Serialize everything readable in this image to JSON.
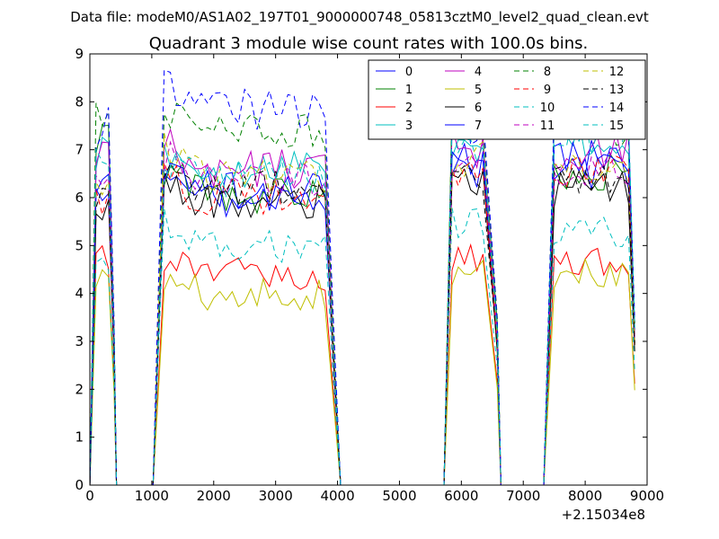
{
  "header": {
    "datafile": "Data file: modeM0/AS1A02_197T01_9000000748_05813cztM0_level2_quad_clean.evt"
  },
  "chart_data": {
    "type": "line",
    "title": "Quadrant 3 module wise count rates with 100.0s bins.",
    "xlabel": "",
    "ylabel": "",
    "x_offset_label": "+2.15034e8",
    "xlim": [
      0,
      9000
    ],
    "ylim": [
      0,
      9
    ],
    "xticks": [
      0,
      1000,
      2000,
      3000,
      4000,
      5000,
      6000,
      7000,
      8000,
      9000
    ],
    "yticks": [
      0,
      1,
      2,
      3,
      4,
      5,
      6,
      7,
      8,
      9
    ],
    "grid": false,
    "legend_position": "top-right",
    "segments": [
      {
        "t0": 100,
        "n": 3,
        "drop": 390
      },
      {
        "t0": 1200,
        "n": 27,
        "drop": 3930
      },
      {
        "t0": 5850,
        "n": 6,
        "drop": 6580
      },
      {
        "t0": 7500,
        "n": 13,
        "drop": 8800
      }
    ],
    "gaps": [
      [
        430,
        1020
      ],
      [
        4050,
        5720
      ],
      [
        6640,
        7330
      ]
    ],
    "series": [
      {
        "name": "0",
        "color": "#0000ff",
        "dash": "solid",
        "level": [
          6.5,
          6.2,
          6.7,
          6.6
        ],
        "bump": 0.45
      },
      {
        "name": "1",
        "color": "#008000",
        "dash": "solid",
        "level": [
          7.2,
          6.1,
          7.5,
          6.6
        ],
        "bump": 0.45
      },
      {
        "name": "2",
        "color": "#ff0000",
        "dash": "solid",
        "level": [
          4.7,
          4.4,
          4.8,
          4.7
        ],
        "bump": 0.35
      },
      {
        "name": "3",
        "color": "#00bfbf",
        "dash": "solid",
        "level": [
          7.0,
          6.6,
          7.1,
          7.2
        ],
        "bump": 0.4
      },
      {
        "name": "4",
        "color": "#bf00bf",
        "dash": "solid",
        "level": [
          6.9,
          6.6,
          7.0,
          7.0
        ],
        "bump": 0.45
      },
      {
        "name": "5",
        "color": "#bfbf00",
        "dash": "solid",
        "level": [
          4.3,
          4.0,
          4.5,
          4.4
        ],
        "bump": 0.35
      },
      {
        "name": "6",
        "color": "#000000",
        "dash": "solid",
        "level": [
          5.8,
          5.9,
          6.2,
          6.2
        ],
        "bump": 0.4
      },
      {
        "name": "7",
        "color": "#0000ff",
        "dash": "solid",
        "level": [
          6.3,
          6.0,
          6.6,
          6.8
        ],
        "bump": 0.4
      },
      {
        "name": "8",
        "color": "#008000",
        "dash": "dashed",
        "level": [
          7.6,
          7.3,
          7.8,
          7.5
        ],
        "bump": 0.45
      },
      {
        "name": "9",
        "color": "#ff0000",
        "dash": "dashed",
        "level": [
          6.0,
          6.0,
          6.5,
          6.5
        ],
        "bump": 0.4
      },
      {
        "name": "10",
        "color": "#00bfbf",
        "dash": "dashed",
        "level": [
          4.8,
          5.0,
          5.5,
          5.3
        ],
        "bump": 0.35
      },
      {
        "name": "11",
        "color": "#bf00bf",
        "dash": "dashed",
        "level": [
          6.4,
          6.4,
          6.8,
          6.6
        ],
        "bump": 0.4
      },
      {
        "name": "12",
        "color": "#bfbf00",
        "dash": "dashed",
        "level": [
          6.2,
          6.5,
          6.8,
          6.6
        ],
        "bump": 0.4
      },
      {
        "name": "13",
        "color": "#000000",
        "dash": "dashed",
        "level": [
          6.1,
          6.2,
          6.4,
          6.5
        ],
        "bump": 0.4
      },
      {
        "name": "14",
        "color": "#0000ff",
        "dash": "dashed",
        "level": [
          7.5,
          7.9,
          7.6,
          7.6
        ],
        "bump": 0.5
      },
      {
        "name": "15",
        "color": "#00bfbf",
        "dash": "dashed",
        "level": [
          6.8,
          6.4,
          7.1,
          7.3
        ],
        "bump": 0.4
      }
    ]
  }
}
